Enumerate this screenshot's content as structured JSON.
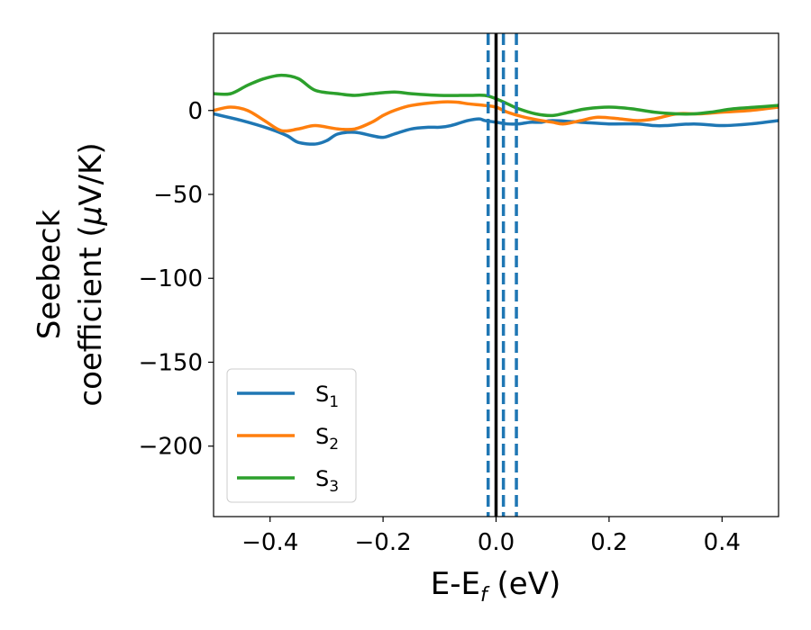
{
  "chart_data": {
    "type": "line",
    "title": "",
    "xlabel": {
      "text": "E-E",
      "sub": "f",
      "unit": " (eV)"
    },
    "ylabel": {
      "line1": "Seebeck",
      "line2": "coefficient  (",
      "mu": "μ",
      "unit": "V/K)"
    },
    "xlim": [
      -0.5,
      0.5
    ],
    "ylim": [
      -242,
      46
    ],
    "xticks": [
      -0.4,
      -0.2,
      0.0,
      0.2,
      0.4
    ],
    "xtick_labels": [
      "−0.4",
      "−0.2",
      "0.0",
      "0.2",
      "0.4"
    ],
    "yticks": [
      0,
      -50,
      -100,
      -150,
      -200
    ],
    "ytick_labels": [
      "0",
      "−50",
      "−100",
      "−150",
      "−200"
    ],
    "grid": false,
    "legend_position": "lower-left",
    "vlines": [
      {
        "x": 0.0,
        "style": "solid",
        "color": "#000000"
      },
      {
        "x": -0.014,
        "style": "dashed",
        "color": "#1f77b4"
      },
      {
        "x": 0.013,
        "style": "dashed",
        "color": "#1f77b4"
      },
      {
        "x": 0.036,
        "style": "dashed",
        "color": "#1f77b4"
      }
    ],
    "series": [
      {
        "name": "S",
        "sub": "1",
        "color": "#1f77b4",
        "x": [
          -0.5,
          -0.45,
          -0.4,
          -0.37,
          -0.35,
          -0.32,
          -0.3,
          -0.28,
          -0.25,
          -0.22,
          -0.2,
          -0.18,
          -0.15,
          -0.12,
          -0.1,
          -0.08,
          -0.05,
          -0.03,
          -0.02,
          0.0,
          0.02,
          0.04,
          0.06,
          0.08,
          0.1,
          0.15,
          0.2,
          0.25,
          0.28,
          0.3,
          0.35,
          0.4,
          0.45,
          0.5
        ],
        "y": [
          -2,
          -6,
          -11,
          -15,
          -19,
          -20,
          -18,
          -14,
          -13,
          -15,
          -16,
          -14,
          -11,
          -10,
          -10,
          -9,
          -6,
          -5,
          -6,
          -7,
          -8,
          -8,
          -7,
          -7,
          -6,
          -7,
          -8,
          -8,
          -9,
          -9,
          -8,
          -9,
          -8,
          -6
        ]
      },
      {
        "name": "S",
        "sub": "2",
        "color": "#ff7f0e",
        "x": [
          -0.5,
          -0.47,
          -0.44,
          -0.41,
          -0.38,
          -0.35,
          -0.32,
          -0.28,
          -0.25,
          -0.22,
          -0.2,
          -0.18,
          -0.15,
          -0.1,
          -0.07,
          -0.05,
          -0.02,
          0.0,
          0.02,
          0.05,
          0.08,
          0.1,
          0.12,
          0.15,
          0.18,
          0.22,
          0.25,
          0.28,
          0.32,
          0.36,
          0.4,
          0.45,
          0.5
        ],
        "y": [
          0,
          2,
          0,
          -6,
          -12,
          -11,
          -9,
          -11,
          -11,
          -7,
          -3,
          0,
          3,
          5,
          5,
          4,
          3,
          2,
          -1,
          -4,
          -6,
          -7,
          -8,
          -6,
          -4,
          -5,
          -6,
          -5,
          -2,
          -2,
          -1,
          0,
          2
        ]
      },
      {
        "name": "S",
        "sub": "3",
        "color": "#2ca02c",
        "x": [
          -0.5,
          -0.47,
          -0.44,
          -0.41,
          -0.38,
          -0.35,
          -0.32,
          -0.28,
          -0.25,
          -0.22,
          -0.18,
          -0.15,
          -0.1,
          -0.05,
          -0.02,
          0.0,
          0.02,
          0.04,
          0.07,
          0.1,
          0.13,
          0.16,
          0.2,
          0.24,
          0.28,
          0.32,
          0.35,
          0.38,
          0.42,
          0.46,
          0.5
        ],
        "y": [
          10,
          10,
          15,
          19,
          21,
          19,
          12,
          10,
          9,
          10,
          11,
          10,
          9,
          9,
          9,
          7,
          4,
          1,
          -2,
          -3,
          -1,
          1,
          2,
          1,
          -1,
          -2,
          -2,
          -1,
          1,
          2,
          3
        ]
      }
    ]
  }
}
